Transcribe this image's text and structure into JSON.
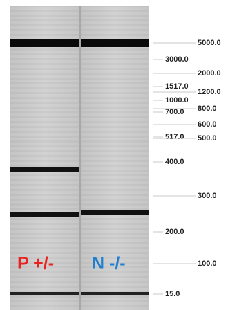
{
  "lanes": [
    {
      "label": "P +/-",
      "color": "#e8231f"
    },
    {
      "label": "N -/-",
      "color": "#1f7fd0"
    }
  ],
  "ladder": [
    "5000.0",
    "3000.0",
    "2000.0",
    "1517.0",
    "1200.0",
    "1000.0",
    "800.0",
    "700.0",
    "600.0",
    "517.0",
    "500.0",
    "400.0",
    "300.0",
    "200.0",
    "100.0",
    "15.0"
  ]
}
